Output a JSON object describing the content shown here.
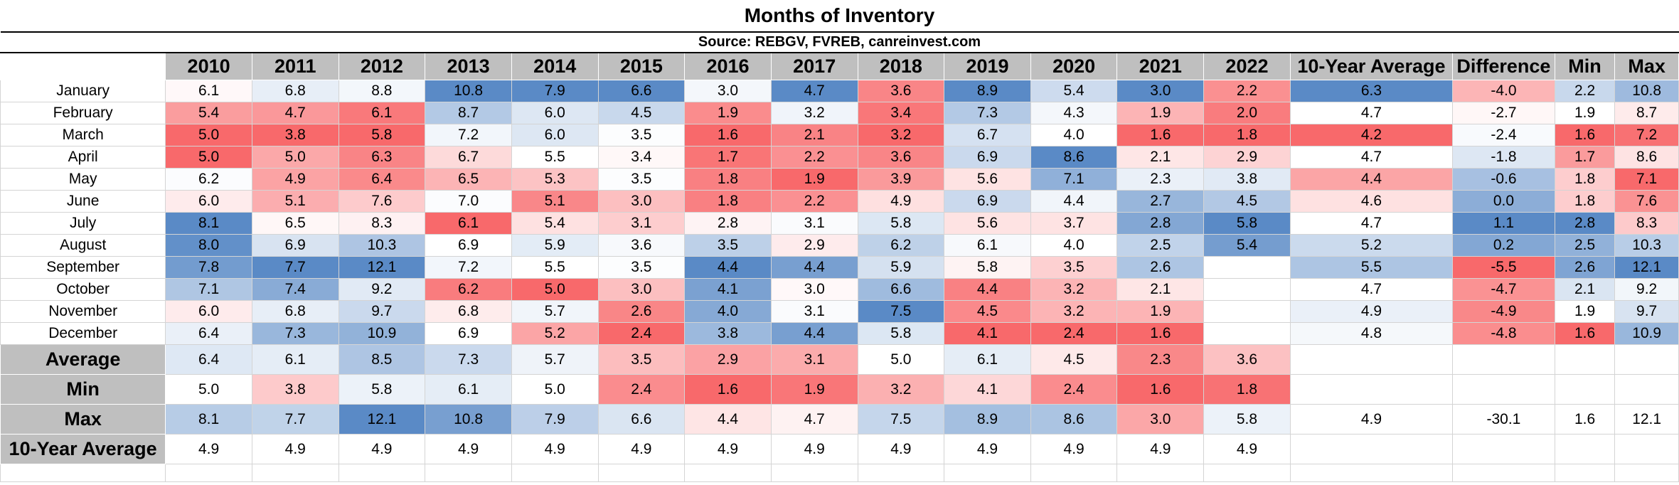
{
  "chart_data": {
    "type": "table",
    "title": "Months of Inventory",
    "subtitle": "Source: REBGV, FVREB, canreinvest.com",
    "columns": [
      "2010",
      "2011",
      "2012",
      "2013",
      "2014",
      "2015",
      "2016",
      "2017",
      "2018",
      "2019",
      "2020",
      "2021",
      "2022"
    ],
    "extra_columns": [
      "10-Year Average",
      "Difference",
      "Min",
      "Max"
    ],
    "rows": [
      {
        "label": "January",
        "values": [
          "6.1",
          "6.8",
          "8.8",
          "10.8",
          "7.9",
          "6.6",
          "3.0",
          "4.7",
          "3.6",
          "8.9",
          "5.4",
          "3.0",
          "2.2"
        ],
        "extra": [
          "6.3",
          "-4.0",
          "2.2",
          "10.8"
        ]
      },
      {
        "label": "February",
        "values": [
          "5.4",
          "4.7",
          "6.1",
          "8.7",
          "6.0",
          "4.5",
          "1.9",
          "3.2",
          "3.4",
          "7.3",
          "4.3",
          "1.9",
          "2.0"
        ],
        "extra": [
          "4.7",
          "-2.7",
          "1.9",
          "8.7"
        ]
      },
      {
        "label": "March",
        "values": [
          "5.0",
          "3.8",
          "5.8",
          "7.2",
          "6.0",
          "3.5",
          "1.6",
          "2.1",
          "3.2",
          "6.7",
          "4.0",
          "1.6",
          "1.8"
        ],
        "extra": [
          "4.2",
          "-2.4",
          "1.6",
          "7.2"
        ]
      },
      {
        "label": "April",
        "values": [
          "5.0",
          "5.0",
          "6.3",
          "6.7",
          "5.5",
          "3.4",
          "1.7",
          "2.2",
          "3.6",
          "6.9",
          "8.6",
          "2.1",
          "2.9"
        ],
        "extra": [
          "4.7",
          "-1.8",
          "1.7",
          "8.6"
        ]
      },
      {
        "label": "May",
        "values": [
          "6.2",
          "4.9",
          "6.4",
          "6.5",
          "5.3",
          "3.5",
          "1.8",
          "1.9",
          "3.9",
          "5.6",
          "7.1",
          "2.3",
          "3.8"
        ],
        "extra": [
          "4.4",
          "-0.6",
          "1.8",
          "7.1"
        ]
      },
      {
        "label": "June",
        "values": [
          "6.0",
          "5.1",
          "7.6",
          "7.0",
          "5.1",
          "3.0",
          "1.8",
          "2.2",
          "4.9",
          "6.9",
          "4.4",
          "2.7",
          "4.5"
        ],
        "extra": [
          "4.6",
          "0.0",
          "1.8",
          "7.6"
        ]
      },
      {
        "label": "July",
        "values": [
          "8.1",
          "6.5",
          "8.3",
          "6.1",
          "5.4",
          "3.1",
          "2.8",
          "3.1",
          "5.8",
          "5.6",
          "3.7",
          "2.8",
          "5.8"
        ],
        "extra": [
          "4.7",
          "1.1",
          "2.8",
          "8.3"
        ]
      },
      {
        "label": "August",
        "values": [
          "8.0",
          "6.9",
          "10.3",
          "6.9",
          "5.9",
          "3.6",
          "3.5",
          "2.9",
          "6.2",
          "6.1",
          "4.0",
          "2.5",
          "5.4"
        ],
        "extra": [
          "5.2",
          "0.2",
          "2.5",
          "10.3"
        ]
      },
      {
        "label": "September",
        "values": [
          "7.8",
          "7.7",
          "12.1",
          "7.2",
          "5.5",
          "3.5",
          "4.4",
          "4.4",
          "5.9",
          "5.8",
          "3.5",
          "2.6",
          ""
        ],
        "extra": [
          "5.5",
          "-5.5",
          "2.6",
          "12.1"
        ]
      },
      {
        "label": "October",
        "values": [
          "7.1",
          "7.4",
          "9.2",
          "6.2",
          "5.0",
          "3.0",
          "4.1",
          "3.0",
          "6.6",
          "4.4",
          "3.2",
          "2.1",
          ""
        ],
        "extra": [
          "4.7",
          "-4.7",
          "2.1",
          "9.2"
        ]
      },
      {
        "label": "November",
        "values": [
          "6.0",
          "6.8",
          "9.7",
          "6.8",
          "5.7",
          "2.6",
          "4.0",
          "3.1",
          "7.5",
          "4.5",
          "3.2",
          "1.9",
          ""
        ],
        "extra": [
          "4.9",
          "-4.9",
          "1.9",
          "9.7"
        ]
      },
      {
        "label": "December",
        "values": [
          "6.4",
          "7.3",
          "10.9",
          "6.9",
          "5.2",
          "2.4",
          "3.8",
          "4.4",
          "5.8",
          "4.1",
          "2.4",
          "1.6",
          ""
        ],
        "extra": [
          "4.8",
          "-4.8",
          "1.6",
          "10.9"
        ]
      }
    ],
    "summary_rows": [
      {
        "label": "Average",
        "values": [
          "6.4",
          "6.1",
          "8.5",
          "7.3",
          "5.7",
          "3.5",
          "2.9",
          "3.1",
          "5.0",
          "6.1",
          "4.5",
          "2.3",
          "3.6"
        ],
        "extra": [
          "",
          "",
          "",
          ""
        ]
      },
      {
        "label": "Min",
        "values": [
          "5.0",
          "3.8",
          "5.8",
          "6.1",
          "5.0",
          "2.4",
          "1.6",
          "1.9",
          "3.2",
          "4.1",
          "2.4",
          "1.6",
          "1.8"
        ],
        "extra": [
          "",
          "",
          "",
          ""
        ]
      },
      {
        "label": "Max",
        "values": [
          "8.1",
          "7.7",
          "12.1",
          "10.8",
          "7.9",
          "6.6",
          "4.4",
          "4.7",
          "7.5",
          "8.9",
          "8.6",
          "3.0",
          "5.8"
        ],
        "extra": [
          "4.9",
          "-30.1",
          "1.6",
          "12.1"
        ]
      },
      {
        "label": "10-Year Average",
        "values": [
          "4.9",
          "4.9",
          "4.9",
          "4.9",
          "4.9",
          "4.9",
          "4.9",
          "4.9",
          "4.9",
          "4.9",
          "4.9",
          "4.9",
          "4.9"
        ],
        "extra": [
          "",
          "",
          "",
          ""
        ]
      }
    ],
    "color_scale": {
      "low": "#f8696b",
      "mid": "#ffffff",
      "high": "#5a8ac6",
      "range": "per column"
    },
    "header_fill": "#bfbfbf"
  }
}
